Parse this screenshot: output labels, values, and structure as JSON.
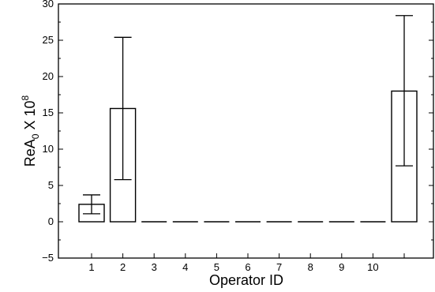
{
  "chart_data": {
    "type": "bar",
    "categories": [
      "1",
      "2",
      "3",
      "4",
      "5",
      "6",
      "7",
      "8",
      "9",
      "10",
      ""
    ],
    "values": [
      2.4,
      15.6,
      0,
      0,
      0,
      0,
      0,
      0,
      0,
      0,
      18.0
    ],
    "error_low": [
      1.1,
      5.8,
      0,
      0,
      0,
      0,
      0,
      0,
      0,
      0,
      7.7
    ],
    "error_high": [
      3.7,
      25.4,
      0,
      0,
      0,
      0,
      0,
      0,
      0,
      0,
      28.4
    ],
    "xlabel": "Operator ID",
    "ylabel": {
      "base": "ReA",
      "subscript": "0",
      "mid": " X 10",
      "superscript": "8"
    },
    "ylim": [
      -5,
      30
    ],
    "yticks": [
      -5,
      0,
      5,
      10,
      15,
      20,
      25,
      30
    ],
    "ytick_labels": [
      "−5",
      "0",
      "5",
      "10",
      "15",
      "20",
      "25",
      "30"
    ],
    "grid": false,
    "legend": "none",
    "colors": {
      "bar_fill": "#ffffff",
      "stroke": "#000000"
    }
  }
}
